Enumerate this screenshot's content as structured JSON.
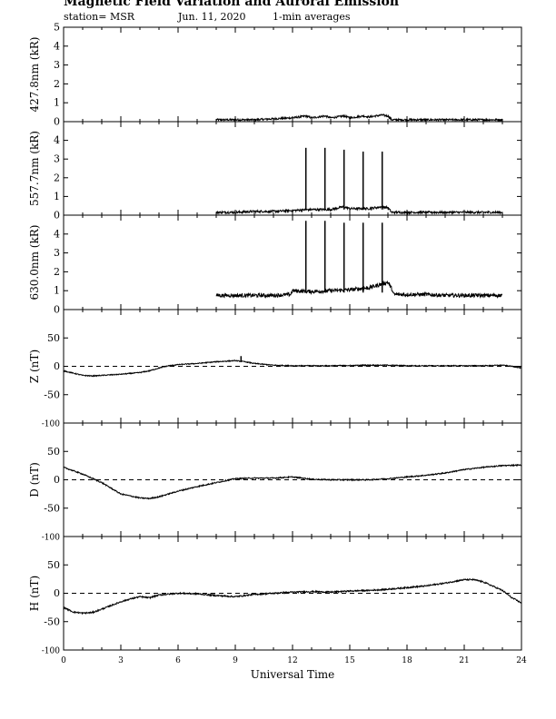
{
  "header": {
    "title": "Magnetic Field Variation and Auroral Emission",
    "station": "station= MSR",
    "date": "Jun. 11, 2020",
    "averaging": "1-min averages"
  },
  "chart_data": [
    {
      "type": "line",
      "ylabel": "427.8nm (kR)",
      "ylim": [
        0,
        5
      ],
      "yticks": [
        0,
        1,
        2,
        3,
        4,
        5
      ],
      "x_range": [
        0,
        24
      ],
      "baseline_dashed": false,
      "series": [
        {
          "x": [
            8,
            9,
            10,
            11,
            12,
            12.7,
            13,
            13.7,
            14,
            14.7,
            15,
            15.7,
            16,
            16.7,
            17,
            17.2,
            18,
            19,
            20,
            21,
            22,
            23
          ],
          "y": [
            0.1,
            0.1,
            0.1,
            0.15,
            0.2,
            0.3,
            0.2,
            0.3,
            0.2,
            0.3,
            0.2,
            0.3,
            0.25,
            0.35,
            0.3,
            0.1,
            0.1,
            0.1,
            0.1,
            0.1,
            0.1,
            0.1
          ],
          "noise": 0.05
        }
      ]
    },
    {
      "type": "line",
      "ylabel": "557.7nm (kR)",
      "ylim": [
        0,
        5
      ],
      "yticks": [
        0,
        1,
        2,
        3,
        4
      ],
      "x_range": [
        0,
        24
      ],
      "baseline_dashed": false,
      "spikes": [
        {
          "x": 12.7,
          "y": 3.6
        },
        {
          "x": 13.7,
          "y": 3.6
        },
        {
          "x": 14.7,
          "y": 3.5
        },
        {
          "x": 15.7,
          "y": 3.4
        },
        {
          "x": 16.7,
          "y": 3.4
        }
      ],
      "series": [
        {
          "x": [
            8,
            9,
            10,
            11,
            12,
            13,
            14,
            14.7,
            15,
            16,
            16.7,
            17,
            17.2,
            18,
            19,
            20,
            21,
            22,
            23
          ],
          "y": [
            0.15,
            0.15,
            0.2,
            0.2,
            0.25,
            0.3,
            0.3,
            0.45,
            0.35,
            0.35,
            0.45,
            0.4,
            0.15,
            0.15,
            0.15,
            0.15,
            0.15,
            0.15,
            0.15
          ],
          "noise": 0.06
        }
      ]
    },
    {
      "type": "line",
      "ylabel": "630.0nm (kR)",
      "ylim": [
        0,
        5
      ],
      "yticks": [
        0,
        1,
        2,
        3,
        4
      ],
      "x_range": [
        0,
        24
      ],
      "baseline_dashed": false,
      "spikes": [
        {
          "x": 12.7,
          "y": 4.7
        },
        {
          "x": 13.7,
          "y": 4.7
        },
        {
          "x": 14.7,
          "y": 4.6
        },
        {
          "x": 15.7,
          "y": 4.6
        },
        {
          "x": 16.7,
          "y": 4.6
        }
      ],
      "series": [
        {
          "x": [
            8,
            9,
            10,
            11,
            11.9,
            12,
            13,
            14,
            15,
            15.5,
            16,
            16.5,
            17,
            17.2,
            17.3,
            18,
            19,
            20,
            21,
            22,
            23
          ],
          "y": [
            0.75,
            0.75,
            0.75,
            0.75,
            0.8,
            1.0,
            0.95,
            1.0,
            1.05,
            1.1,
            1.15,
            1.3,
            1.45,
            1.1,
            0.8,
            0.8,
            0.8,
            0.75,
            0.75,
            0.75,
            0.75
          ],
          "noise": 0.1
        }
      ]
    },
    {
      "type": "line",
      "ylabel": "Z (nT)",
      "ylim": [
        -100,
        100
      ],
      "yticks": [
        -100,
        -50,
        0,
        50
      ],
      "x_range": [
        0,
        24
      ],
      "baseline_dashed": true,
      "spikes": [
        {
          "x": 9.3,
          "y": 18
        }
      ],
      "series": [
        {
          "x": [
            0,
            0.5,
            1,
            1.5,
            2,
            3,
            4,
            4.5,
            5,
            5.5,
            6,
            7,
            8,
            9,
            9.5,
            10,
            11,
            12,
            14,
            16,
            17,
            18,
            20,
            22,
            23,
            23.5,
            24
          ],
          "y": [
            -8,
            -12,
            -16,
            -17,
            -16,
            -14,
            -11,
            -8,
            -3,
            1,
            3,
            5,
            8,
            10,
            8,
            5,
            2,
            1,
            1,
            2,
            2,
            1,
            1,
            1,
            2,
            0,
            -3
          ],
          "noise": 0.8
        }
      ]
    },
    {
      "type": "line",
      "ylabel": "D (nT)",
      "ylim": [
        -100,
        100
      ],
      "yticks": [
        -100,
        -50,
        0,
        50
      ],
      "x_range": [
        0,
        24
      ],
      "baseline_dashed": true,
      "series": [
        {
          "x": [
            0,
            0.5,
            1,
            2,
            3,
            4,
            4.5,
            5,
            6,
            7,
            8,
            9,
            10,
            11,
            12,
            13,
            14,
            15,
            16,
            17,
            18,
            19,
            20,
            21,
            22,
            23,
            24
          ],
          "y": [
            22,
            16,
            10,
            -5,
            -25,
            -32,
            -33,
            -30,
            -20,
            -12,
            -5,
            2,
            3,
            3,
            5,
            1,
            0,
            0,
            0,
            2,
            5,
            8,
            12,
            18,
            22,
            25,
            26
          ],
          "noise": 1.0
        }
      ]
    },
    {
      "type": "line",
      "ylabel": "H (nT)",
      "ylim": [
        -100,
        100
      ],
      "yticks": [
        -100,
        -50,
        0,
        50
      ],
      "x_range": [
        0,
        24
      ],
      "xlabel": "Universal Time",
      "xticks": [
        0,
        3,
        6,
        9,
        12,
        15,
        18,
        21,
        24
      ],
      "baseline_dashed": true,
      "series": [
        {
          "x": [
            0,
            0.5,
            1,
            1.5,
            2,
            3,
            3.5,
            4,
            4.5,
            5,
            6,
            7,
            8,
            9,
            10,
            11,
            12,
            13,
            14,
            15,
            16,
            17,
            18,
            19,
            20,
            21,
            21.5,
            22,
            23,
            23.5,
            24
          ],
          "y": [
            -25,
            -33,
            -35,
            -34,
            -28,
            -15,
            -10,
            -6,
            -8,
            -3,
            0,
            -1,
            -4,
            -6,
            -2,
            0,
            2,
            3,
            2,
            4,
            5,
            7,
            10,
            13,
            18,
            24,
            24,
            20,
            5,
            -8,
            -17
          ],
          "noise": 1.2
        }
      ]
    }
  ]
}
